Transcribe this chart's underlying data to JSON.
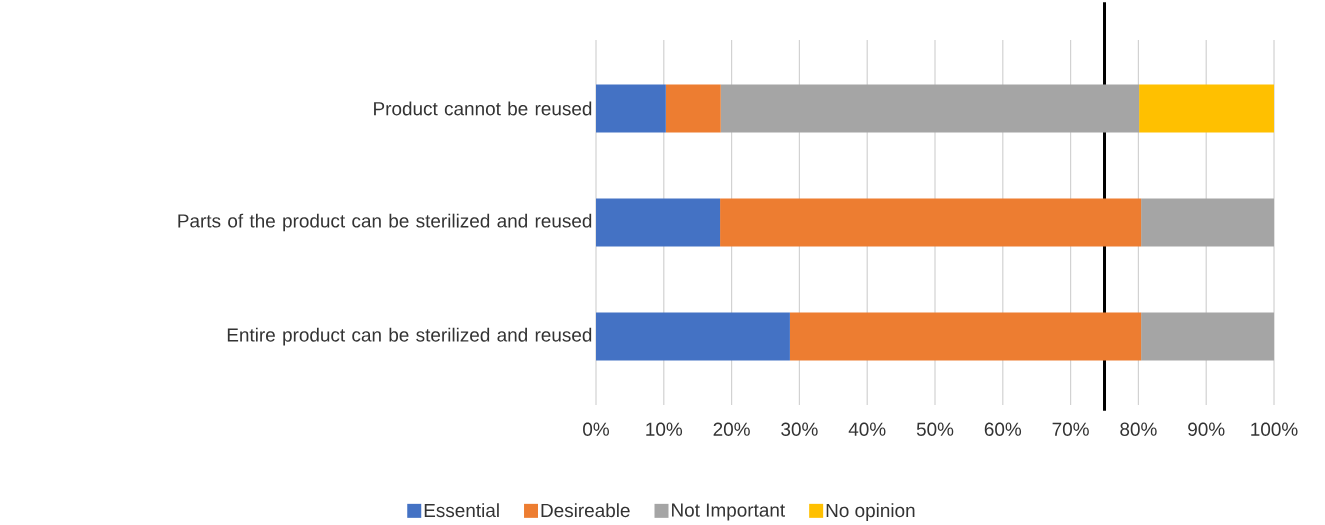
{
  "chart_data": {
    "type": "bar",
    "orientation": "horizontal",
    "stacked": true,
    "categories": [
      "Product cannot be reused",
      "Parts of the product can be sterilized and reused",
      "Entire product can be sterilized and reused"
    ],
    "series": [
      {
        "name": "Essential",
        "color": "#4472c4",
        "values": [
          10.3,
          18.3,
          28.6
        ]
      },
      {
        "name": "Desireable",
        "color": "#ed7d31",
        "values": [
          8.1,
          62.1,
          51.8
        ]
      },
      {
        "name": "Not Important",
        "color": "#a5a5a5",
        "values": [
          61.7,
          19.6,
          19.6
        ]
      },
      {
        "name": "No opinion",
        "color": "#ffc000",
        "values": [
          19.9,
          null,
          null
        ]
      }
    ],
    "xlim": [
      0,
      100
    ],
    "xticks": [
      {
        "value": 0,
        "label": "0%"
      },
      {
        "value": 10,
        "label": "10%"
      },
      {
        "value": 20,
        "label": "20%"
      },
      {
        "value": 30,
        "label": "30%"
      },
      {
        "value": 40,
        "label": "40%"
      },
      {
        "value": 50,
        "label": "50%"
      },
      {
        "value": 60,
        "label": "60%"
      },
      {
        "value": 70,
        "label": "70%"
      },
      {
        "value": 80,
        "label": "80%"
      },
      {
        "value": 90,
        "label": "90%"
      },
      {
        "value": 100,
        "label": "100%"
      }
    ],
    "ref_lines": [
      {
        "axis": "x",
        "value": 75,
        "color": "#000000"
      }
    ],
    "grid": "x",
    "legend": "bottom"
  }
}
